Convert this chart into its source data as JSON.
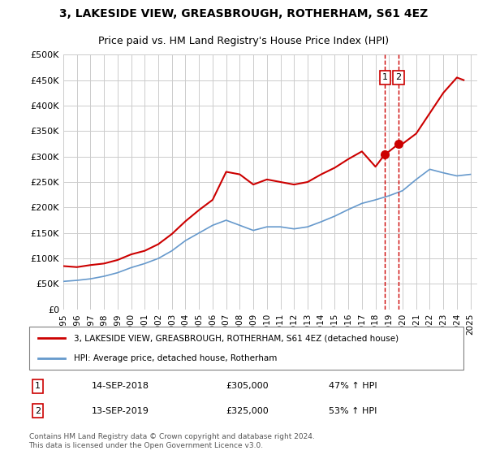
{
  "title": "3, LAKESIDE VIEW, GREASBROUGH, ROTHERHAM, S61 4EZ",
  "subtitle": "Price paid vs. HM Land Registry's House Price Index (HPI)",
  "legend_label_red": "3, LAKESIDE VIEW, GREASBROUGH, ROTHERHAM, S61 4EZ (detached house)",
  "legend_label_blue": "HPI: Average price, detached house, Rotherham",
  "footer": "Contains HM Land Registry data © Crown copyright and database right 2024.\nThis data is licensed under the Open Government Licence v3.0.",
  "sale1_label": "1",
  "sale1_date": "14-SEP-2018",
  "sale1_price": "£305,000",
  "sale1_hpi": "47% ↑ HPI",
  "sale2_label": "2",
  "sale2_date": "13-SEP-2019",
  "sale2_price": "£325,000",
  "sale2_hpi": "53% ↑ HPI",
  "sale1_x": 2018.71,
  "sale2_x": 2019.71,
  "sale1_y": 305000,
  "sale2_y": 325000,
  "ylim_min": 0,
  "ylim_max": 500000,
  "xlim_min": 1995,
  "xlim_max": 2025.5,
  "yticks": [
    0,
    50000,
    100000,
    150000,
    200000,
    250000,
    300000,
    350000,
    400000,
    450000,
    500000
  ],
  "red_color": "#cc0000",
  "blue_color": "#6699cc",
  "vline_color": "#cc0000",
  "background_color": "#ffffff",
  "grid_color": "#cccccc",
  "hpi_x": [
    1995,
    1996,
    1997,
    1998,
    1999,
    2000,
    2001,
    2002,
    2003,
    2004,
    2005,
    2006,
    2007,
    2008,
    2009,
    2010,
    2011,
    2012,
    2013,
    2014,
    2015,
    2016,
    2017,
    2018,
    2019,
    2020,
    2021,
    2022,
    2023,
    2024,
    2025
  ],
  "hpi_y": [
    55000,
    57000,
    60000,
    65000,
    72000,
    82000,
    90000,
    100000,
    115000,
    135000,
    150000,
    165000,
    175000,
    165000,
    155000,
    162000,
    162000,
    158000,
    162000,
    172000,
    183000,
    196000,
    208000,
    215000,
    223000,
    233000,
    255000,
    275000,
    268000,
    262000,
    265000
  ],
  "red_x": [
    1995,
    1996,
    1997,
    1998,
    1999,
    2000,
    2001,
    2002,
    2003,
    2004,
    2005,
    2006,
    2007,
    2008,
    2009,
    2010,
    2011,
    2012,
    2013,
    2014,
    2015,
    2016,
    2017,
    2018,
    2018.71,
    2019,
    2019.71,
    2020,
    2021,
    2022,
    2023,
    2024,
    2024.5
  ],
  "red_y": [
    85000,
    83000,
    87000,
    90000,
    97000,
    108000,
    115000,
    128000,
    148000,
    173000,
    195000,
    215000,
    270000,
    265000,
    245000,
    255000,
    250000,
    245000,
    250000,
    265000,
    278000,
    295000,
    310000,
    280000,
    305000,
    310000,
    325000,
    325000,
    345000,
    385000,
    425000,
    455000,
    450000
  ],
  "xtick_years": [
    1995,
    1996,
    1997,
    1998,
    1999,
    2000,
    2001,
    2002,
    2003,
    2004,
    2005,
    2006,
    2007,
    2008,
    2009,
    2010,
    2011,
    2012,
    2013,
    2014,
    2015,
    2016,
    2017,
    2018,
    2019,
    2020,
    2021,
    2022,
    2023,
    2024,
    2025
  ]
}
